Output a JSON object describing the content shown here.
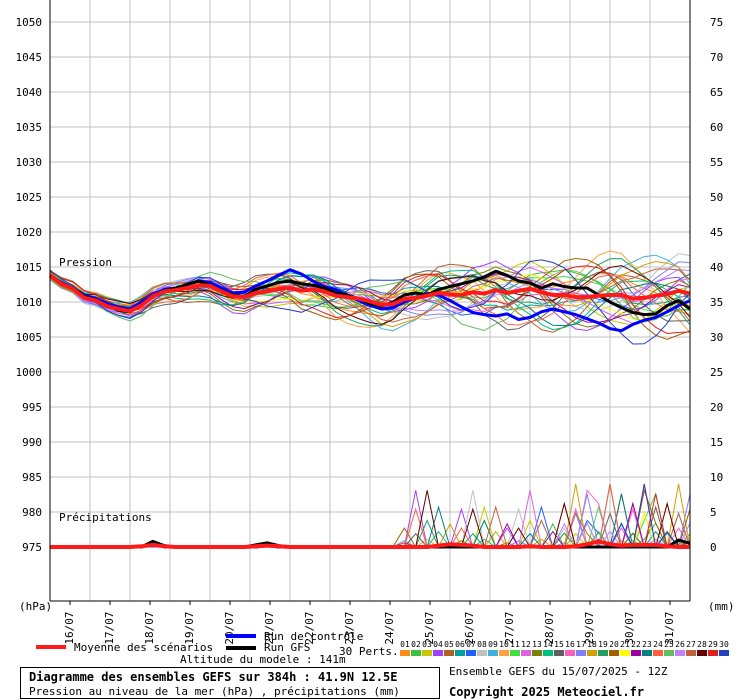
{
  "chart_data": {
    "type": "line",
    "left_axis": {
      "unit_label": "(hPa)",
      "ticks": [
        1050,
        1045,
        1040,
        1035,
        1030,
        1025,
        1020,
        1015,
        1010,
        1005,
        1000,
        995,
        990,
        985,
        980,
        975
      ],
      "range": [
        975,
        1050
      ]
    },
    "right_axis": {
      "unit_label": "(mm)",
      "ticks": [
        75,
        70,
        65,
        60,
        55,
        50,
        45,
        40,
        35,
        30,
        25,
        20,
        15,
        10,
        5,
        0
      ],
      "range": [
        -5,
        75
      ]
    },
    "x_tick_labels": [
      "16/07",
      "17/07",
      "18/07",
      "19/07",
      "20/07",
      "21/07",
      "22/07",
      "23/07",
      "24/07",
      "25/07",
      "26/07",
      "27/07",
      "28/07",
      "29/07",
      "30/07",
      "31/07"
    ],
    "annotations": {
      "pressure": "Pression",
      "precip": "Précipitations"
    },
    "series": [
      {
        "name": "Moyenne des scénarios",
        "color": "#ff1a1a",
        "pressure": [
          1013.8,
          1012.6,
          1011.9,
          1010.6,
          1010.2,
          1009.4,
          1009.0,
          1008.7,
          1009.5,
          1010.8,
          1011.5,
          1011.7,
          1012.0,
          1012.4,
          1012.3,
          1011.5,
          1010.8,
          1010.7,
          1011.3,
          1011.5,
          1011.9,
          1012.0,
          1011.6,
          1011.8,
          1011.5,
          1010.9,
          1010.7,
          1010.5,
          1010.1,
          1009.6,
          1009.7,
          1010.4,
          1010.6,
          1010.9,
          1011.3,
          1011.1,
          1011.0,
          1011.4,
          1011.2,
          1011.7,
          1011.3,
          1011.6,
          1011.9,
          1011.4,
          1011.0,
          1011.0,
          1010.7,
          1010.7,
          1010.9,
          1011.0,
          1011.0,
          1010.5,
          1010.6,
          1010.9,
          1011.1,
          1011.6,
          1011.2
        ],
        "precip": [
          0,
          0,
          0,
          0,
          0,
          0,
          0,
          0,
          0.1,
          0.3,
          0.1,
          0,
          0,
          0,
          0,
          0,
          0,
          0,
          0.1,
          0.2,
          0.1,
          0,
          0,
          0,
          0,
          0,
          0,
          0,
          0,
          0,
          0,
          0,
          0,
          0,
          0.2,
          0.4,
          0.3,
          0.2,
          0,
          0,
          0,
          0,
          0.1,
          0,
          0,
          0,
          0.1,
          0.4,
          0.8,
          0.4,
          0.2,
          0.3,
          0.3,
          0.3,
          0.1,
          0,
          0
        ]
      },
      {
        "name": "Run de contrôle",
        "color": "#0000ff",
        "pressure": [
          1013.8,
          1012.8,
          1012.0,
          1011.0,
          1010.5,
          1009.8,
          1009.3,
          1009.0,
          1010.0,
          1011.0,
          1011.8,
          1012.0,
          1012.5,
          1013.0,
          1012.8,
          1012.0,
          1011.3,
          1011.4,
          1012.3,
          1013.0,
          1013.8,
          1014.6,
          1014.0,
          1013.0,
          1012.2,
          1011.8,
          1011.0,
          1010.2,
          1009.5,
          1009.0,
          1009.2,
          1010.0,
          1010.6,
          1011.2,
          1011.0,
          1010.2,
          1009.3,
          1008.5,
          1008.2,
          1008.0,
          1008.3,
          1007.5,
          1007.8,
          1008.6,
          1009.0,
          1008.6,
          1008.2,
          1007.6,
          1007.0,
          1006.2,
          1005.9,
          1006.8,
          1007.4,
          1007.8,
          1008.6,
          1009.5,
          1010.2
        ],
        "precip": [
          0,
          0,
          0,
          0,
          0,
          0,
          0,
          0,
          0,
          0.5,
          0,
          0,
          0,
          0,
          0,
          0,
          0,
          0,
          0,
          0.2,
          0,
          0,
          0,
          0,
          0,
          0,
          0,
          0,
          0,
          0,
          0,
          0,
          0,
          0,
          0,
          0,
          0,
          0,
          0,
          0,
          0,
          0,
          0,
          0,
          0,
          0,
          0,
          0,
          0,
          0,
          0,
          0,
          0,
          0,
          0,
          0,
          0
        ]
      },
      {
        "name": "Run GFS",
        "color": "#000000",
        "pressure": [
          1013.8,
          1012.6,
          1012.0,
          1010.8,
          1010.2,
          1009.5,
          1008.8,
          1008.6,
          1009.6,
          1010.8,
          1011.6,
          1012.0,
          1012.5,
          1013.0,
          1012.4,
          1011.6,
          1011.0,
          1010.8,
          1011.8,
          1012.3,
          1012.8,
          1013.0,
          1012.6,
          1012.4,
          1012.0,
          1011.3,
          1011.0,
          1010.5,
          1009.8,
          1009.4,
          1010.0,
          1011.0,
          1011.3,
          1011.0,
          1011.8,
          1012.2,
          1012.6,
          1013.0,
          1013.6,
          1014.4,
          1013.8,
          1013.0,
          1012.7,
          1012.0,
          1012.6,
          1012.2,
          1012.0,
          1012.0,
          1011.0,
          1010.0,
          1009.2,
          1008.5,
          1008.2,
          1008.3,
          1009.5,
          1010.2,
          1009.0
        ],
        "precip": [
          0,
          0,
          0,
          0,
          0,
          0,
          0,
          0,
          0,
          0.8,
          0.2,
          0,
          0,
          0,
          0,
          0,
          0,
          0,
          0.3,
          0.6,
          0.2,
          0,
          0,
          0,
          0,
          0,
          0,
          0,
          0,
          0,
          0,
          0,
          0,
          0,
          0,
          0,
          0,
          0,
          0,
          0,
          0,
          0,
          0,
          0,
          0,
          0,
          0,
          0,
          0,
          0,
          0,
          0,
          0,
          0,
          0,
          1,
          0.5
        ]
      }
    ],
    "perturbations": {
      "count": 30,
      "labels": [
        "01",
        "02",
        "03",
        "04",
        "05",
        "06",
        "07",
        "08",
        "09",
        "10",
        "11",
        "12",
        "13",
        "14",
        "15",
        "16",
        "17",
        "18",
        "19",
        "20",
        "21",
        "22",
        "23",
        "24",
        "25",
        "26",
        "27",
        "28",
        "29",
        "30"
      ],
      "colors": [
        "#ff8c1a",
        "#40c040",
        "#c8c800",
        "#a040ff",
        "#b06020",
        "#00a0a0",
        "#2060ff",
        "#c0c0c0",
        "#40b0e0",
        "#ffa040",
        "#40e040",
        "#e060e0",
        "#808000",
        "#00c080",
        "#606060",
        "#ff60c0",
        "#8080ff",
        "#d0a000",
        "#20a060",
        "#a06000",
        "#ffff00",
        "#a000a0",
        "#008080",
        "#ff6040",
        "#60c060",
        "#c080ff",
        "#c06040",
        "#600000",
        "#e02020",
        "#2040c0"
      ]
    }
  },
  "legend": {
    "mean_label": "Moyenne des scénarios",
    "control_label": "Run de contrôle",
    "gfs_label": "Run GFS",
    "perts_label": "30 Perts.",
    "altitude_label": "Altitude du modele : 141m"
  },
  "footer": {
    "title": "Diagramme des ensembles GEFS sur 384h : 41.9N 12.5E",
    "subtitle": "Pression au niveau de la mer (hPa) , précipitations (mm)",
    "run_info": "Ensemble GEFS du 15/07/2025 - 12Z",
    "copyright": "Copyright 2025 Meteociel.fr"
  }
}
